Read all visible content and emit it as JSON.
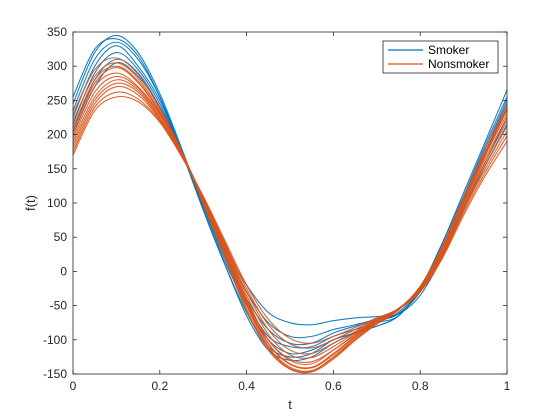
{
  "chart_data": {
    "type": "line",
    "title": "",
    "xlabel": "t",
    "ylabel": "f(t)",
    "xlim": [
      0,
      1
    ],
    "ylim": [
      -150,
      350
    ],
    "xticks": [
      0,
      0.2,
      0.4,
      0.6,
      0.8,
      1
    ],
    "xtick_labels": [
      "0",
      "0.2",
      "0.4",
      "0.6",
      "0.8",
      "1"
    ],
    "yticks": [
      -150,
      -100,
      -50,
      0,
      50,
      100,
      150,
      200,
      250,
      300,
      350
    ],
    "ytick_labels": [
      "-150",
      "-100",
      "-50",
      "0",
      "50",
      "100",
      "150",
      "200",
      "250",
      "300",
      "350"
    ],
    "grid": false,
    "legend": {
      "position": "top-right",
      "entries": [
        "Smoker",
        "Nonsmoker"
      ]
    },
    "x": [
      0,
      0.05,
      0.1,
      0.15,
      0.2,
      0.25,
      0.3,
      0.35,
      0.4,
      0.45,
      0.5,
      0.55,
      0.6,
      0.65,
      0.7,
      0.75,
      0.8,
      0.85,
      0.9,
      0.95,
      1
    ],
    "series": [
      {
        "name": "Smoker",
        "color": "#0072BD",
        "curves": [
          [
            245,
            320,
            345,
            320,
            260,
            180,
            90,
            10,
            -60,
            -110,
            -125,
            -120,
            -100,
            -90,
            -80,
            -65,
            -25,
            40,
            115,
            190,
            265
          ],
          [
            235,
            310,
            335,
            310,
            255,
            180,
            95,
            15,
            -50,
            -100,
            -120,
            -115,
            -100,
            -90,
            -80,
            -65,
            -25,
            40,
            110,
            185,
            255
          ],
          [
            225,
            300,
            330,
            300,
            250,
            175,
            95,
            20,
            -45,
            -95,
            -110,
            -110,
            -95,
            -85,
            -75,
            -65,
            -25,
            35,
            105,
            175,
            245
          ],
          [
            215,
            290,
            320,
            295,
            245,
            175,
            100,
            25,
            -40,
            -85,
            -105,
            -105,
            -90,
            -80,
            -72,
            -62,
            -28,
            30,
            100,
            170,
            240
          ],
          [
            205,
            280,
            310,
            290,
            240,
            175,
            100,
            30,
            -30,
            -75,
            -95,
            -95,
            -85,
            -78,
            -70,
            -62,
            -30,
            25,
            95,
            160,
            225
          ],
          [
            255,
            325,
            340,
            315,
            255,
            175,
            90,
            10,
            -65,
            -115,
            -130,
            -125,
            -105,
            -90,
            -75,
            -60,
            -25,
            35,
            105,
            180,
            250
          ],
          [
            200,
            270,
            305,
            285,
            240,
            175,
            105,
            35,
            -20,
            -60,
            -75,
            -78,
            -72,
            -68,
            -66,
            -62,
            -35,
            20,
            90,
            155,
            215
          ]
        ]
      },
      {
        "name": "Nonsmoker",
        "color": "#D95319",
        "curves": [
          [
            200,
            270,
            290,
            270,
            230,
            175,
            105,
            30,
            -45,
            -105,
            -135,
            -140,
            -120,
            -95,
            -75,
            -55,
            -25,
            30,
            100,
            170,
            230
          ],
          [
            190,
            255,
            280,
            265,
            225,
            172,
            105,
            35,
            -40,
            -100,
            -130,
            -135,
            -115,
            -92,
            -72,
            -55,
            -28,
            25,
            95,
            160,
            220
          ],
          [
            180,
            245,
            270,
            258,
            222,
            170,
            108,
            40,
            -30,
            -85,
            -115,
            -120,
            -105,
            -88,
            -70,
            -55,
            -28,
            22,
            90,
            150,
            205
          ],
          [
            170,
            235,
            255,
            248,
            218,
            168,
            110,
            45,
            -20,
            -70,
            -98,
            -105,
            -95,
            -82,
            -68,
            -55,
            -30,
            18,
            82,
            140,
            190
          ],
          [
            210,
            280,
            300,
            278,
            232,
            175,
            102,
            25,
            -50,
            -110,
            -140,
            -145,
            -125,
            -98,
            -75,
            -55,
            -22,
            35,
            105,
            175,
            240
          ],
          [
            220,
            285,
            305,
            282,
            235,
            175,
            100,
            22,
            -55,
            -112,
            -142,
            -146,
            -126,
            -100,
            -76,
            -56,
            -22,
            35,
            105,
            175,
            235
          ],
          [
            195,
            262,
            285,
            268,
            228,
            174,
            106,
            32,
            -42,
            -100,
            -128,
            -132,
            -115,
            -93,
            -72,
            -54,
            -25,
            28,
            96,
            165,
            225
          ],
          [
            185,
            250,
            275,
            262,
            224,
            172,
            107,
            38,
            -35,
            -92,
            -122,
            -126,
            -110,
            -90,
            -71,
            -55,
            -27,
            24,
            92,
            155,
            212
          ],
          [
            175,
            240,
            262,
            252,
            220,
            170,
            109,
            42,
            -25,
            -78,
            -106,
            -112,
            -100,
            -85,
            -69,
            -55,
            -29,
            20,
            86,
            145,
            198
          ],
          [
            205,
            275,
            298,
            276,
            232,
            175,
            103,
            28,
            -48,
            -106,
            -136,
            -141,
            -122,
            -96,
            -74,
            -55,
            -23,
            32,
            102,
            172,
            236
          ],
          [
            230,
            295,
            312,
            288,
            238,
            176,
            98,
            20,
            -58,
            -115,
            -143,
            -147,
            -128,
            -101,
            -77,
            -57,
            -22,
            36,
            108,
            180,
            245
          ]
        ]
      }
    ]
  }
}
